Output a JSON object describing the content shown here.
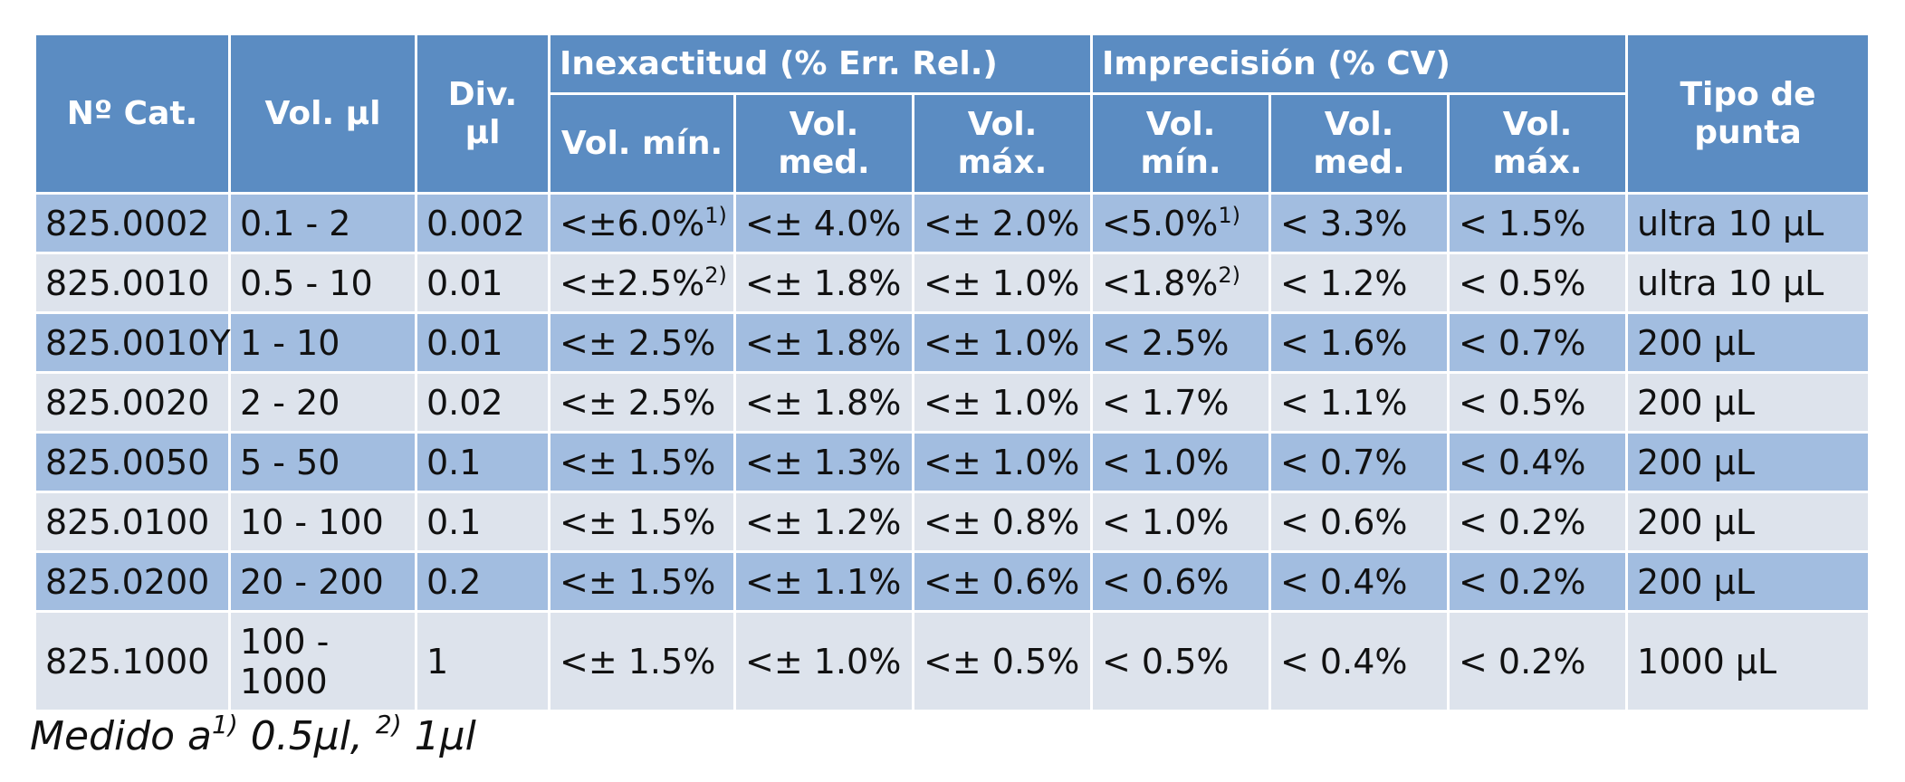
{
  "table": {
    "headers": {
      "group_inexactitud": "Inexactitud (% Err. Rel.)",
      "group_imprecision": "Imprecisión (% CV)",
      "cat": "Nº Cat.",
      "vol": "Vol. µl",
      "div": "Div. µl",
      "inex_min": "Vol. mín.",
      "inex_med": "Vol. med.",
      "inex_max": "Vol. máx.",
      "imp_min": "Vol. mín.",
      "imp_med": "Vol. med.",
      "imp_max": "Vol. máx.",
      "tip": "Tipo de punta"
    },
    "rows": [
      {
        "cat": "825.0002",
        "vol": "0.1 - 2",
        "div": "0.002",
        "inex_min": "<±6.0%",
        "inex_min_note": "1)",
        "inex_med": "<± 4.0%",
        "inex_max": "<± 2.0%",
        "imp_min": "<5.0%",
        "imp_min_note": "1)",
        "imp_med": "< 3.3%",
        "imp_max": "< 1.5%",
        "tip": "ultra 10 µL"
      },
      {
        "cat": "825.0010",
        "vol": "0.5 - 10",
        "div": "0.01",
        "inex_min": "<±2.5%",
        "inex_min_note": "2)",
        "inex_med": "<± 1.8%",
        "inex_max": "<± 1.0%",
        "imp_min": "<1.8%",
        "imp_min_note": "2)",
        "imp_med": "< 1.2%",
        "imp_max": "< 0.5%",
        "tip": "ultra 10 µL"
      },
      {
        "cat": "825.0010Y",
        "vol": "1 - 10",
        "div": "0.01",
        "inex_min": "<± 2.5%",
        "inex_min_note": "",
        "inex_med": "<± 1.8%",
        "inex_max": "<± 1.0%",
        "imp_min": "< 2.5%",
        "imp_min_note": "",
        "imp_med": "< 1.6%",
        "imp_max": "< 0.7%",
        "tip": "200 µL"
      },
      {
        "cat": "825.0020",
        "vol": "2 - 20",
        "div": "0.02",
        "inex_min": "<± 2.5%",
        "inex_min_note": "",
        "inex_med": "<± 1.8%",
        "inex_max": "<± 1.0%",
        "imp_min": "< 1.7%",
        "imp_min_note": "",
        "imp_med": "< 1.1%",
        "imp_max": "< 0.5%",
        "tip": "200 µL"
      },
      {
        "cat": "825.0050",
        "vol": "5 - 50",
        "div": "0.1",
        "inex_min": "<± 1.5%",
        "inex_min_note": "",
        "inex_med": "<± 1.3%",
        "inex_max": "<± 1.0%",
        "imp_min": "< 1.0%",
        "imp_min_note": "",
        "imp_med": "< 0.7%",
        "imp_max": "< 0.4%",
        "tip": "200 µL"
      },
      {
        "cat": "825.0100",
        "vol": "10 - 100",
        "div": "0.1",
        "inex_min": "<± 1.5%",
        "inex_min_note": "",
        "inex_med": "<± 1.2%",
        "inex_max": "<± 0.8%",
        "imp_min": "< 1.0%",
        "imp_min_note": "",
        "imp_med": "< 0.6%",
        "imp_max": "< 0.2%",
        "tip": "200 µL"
      },
      {
        "cat": "825.0200",
        "vol": "20 - 200",
        "div": "0.2",
        "inex_min": "<± 1.5%",
        "inex_min_note": "",
        "inex_med": "<± 1.1%",
        "inex_max": "<± 0.6%",
        "imp_min": "< 0.6%",
        "imp_min_note": "",
        "imp_med": "< 0.4%",
        "imp_max": "< 0.2%",
        "tip": "200 µL"
      },
      {
        "cat": "825.1000",
        "vol": "100 - 1000",
        "div": "1",
        "inex_min": "<± 1.5%",
        "inex_min_note": "",
        "inex_med": "<± 1.0%",
        "inex_max": "<± 0.5%",
        "imp_min": "< 0.5%",
        "imp_min_note": "",
        "imp_med": "< 0.4%",
        "imp_max": "< 0.2%",
        "tip": "1000 µL"
      }
    ]
  },
  "footnote": {
    "prefix": "Medido a",
    "note1": "1)",
    "value1": " 0.5µl, ",
    "note2": "2)",
    "value2": " 1µl"
  },
  "colors": {
    "header_bg": "#5b8cc2",
    "row_odd_bg": "#a2bde0",
    "row_even_bg": "#dde3ec",
    "header_text": "#ffffff"
  }
}
